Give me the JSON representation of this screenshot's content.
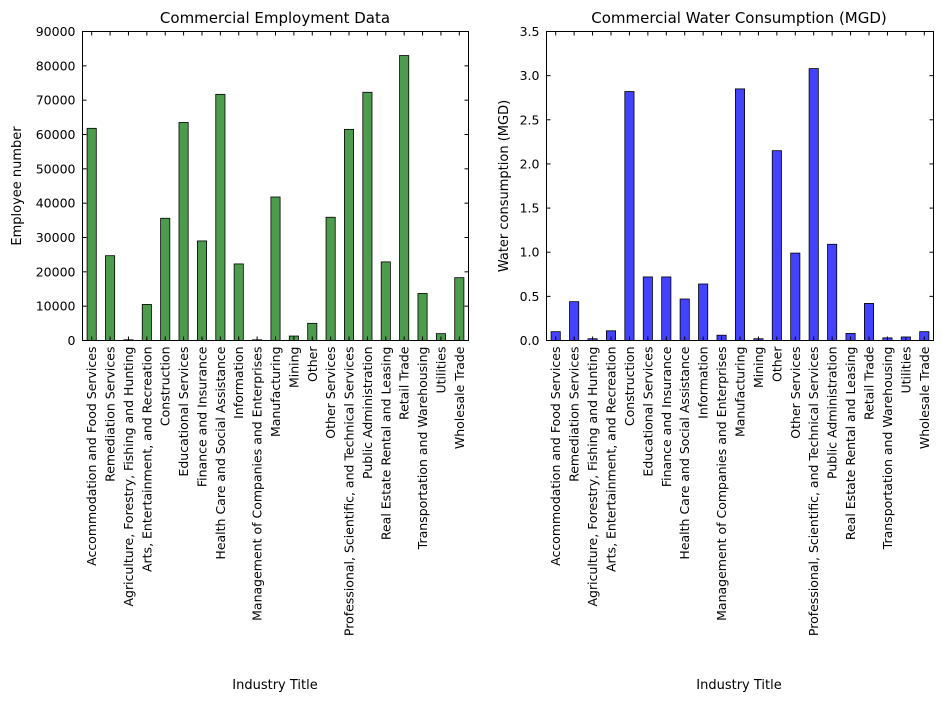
{
  "chart_data": [
    {
      "type": "bar",
      "title": "Commercial Employment Data",
      "xlabel": "Industry Title",
      "ylabel": "Employee number",
      "ylim": [
        0,
        90000
      ],
      "yticks": [
        0,
        10000,
        20000,
        30000,
        40000,
        50000,
        60000,
        70000,
        80000,
        90000
      ],
      "color": "#2e8b2e",
      "grid": false,
      "categories": [
        "Accommodation and Food Services",
        "Remediation Services",
        "Agriculture, Forestry, Fishing and Hunting",
        "Arts, Entertainment, and Recreation",
        "Construction",
        "Educational Services",
        "Finance and Insurance",
        "Health Care and Social Assistance",
        "Information",
        "Management of Companies and Enterprises",
        "Manufacturing",
        "Mining",
        "Other",
        "Other Services",
        "Professional, Scientific, and Technical Services",
        "Public Administration",
        "Real Estate Rental and Leasing",
        "Retail Trade",
        "Transportation and Warehousing",
        "Utilities",
        "Wholesale Trade"
      ],
      "values": [
        61800,
        24700,
        200,
        10500,
        35600,
        63500,
        29000,
        71700,
        22300,
        200,
        41800,
        1300,
        5000,
        35900,
        61500,
        72300,
        22900,
        83000,
        13700,
        2000,
        18300
      ]
    },
    {
      "type": "bar",
      "title": "Commercial Water Consumption (MGD)",
      "xlabel": "Industry Title",
      "ylabel": "Water consumption (MGD)",
      "ylim": [
        0,
        3.5
      ],
      "yticks": [
        0.0,
        0.5,
        1.0,
        1.5,
        2.0,
        2.5,
        3.0,
        3.5
      ],
      "color": "#2222ff",
      "grid": false,
      "categories": [
        "Accommodation and Food Services",
        "Remediation Services",
        "Agriculture, Forestry, Fishing and Hunting",
        "Arts, Entertainment, and Recreation",
        "Construction",
        "Educational Services",
        "Finance and Insurance",
        "Health Care and Social Assistance",
        "Information",
        "Management of Companies and Enterprises",
        "Manufacturing",
        "Mining",
        "Other",
        "Other Services",
        "Professional, Scientific, and Technical Services",
        "Public Administration",
        "Real Estate Rental and Leasing",
        "Retail Trade",
        "Transportation and Warehousing",
        "Utilities",
        "Wholesale Trade"
      ],
      "values": [
        0.1,
        0.44,
        0.02,
        0.11,
        2.82,
        0.72,
        0.72,
        0.47,
        0.64,
        0.06,
        2.85,
        0.02,
        2.15,
        0.99,
        3.08,
        1.09,
        0.08,
        0.42,
        0.03,
        0.04,
        0.1
      ]
    }
  ]
}
